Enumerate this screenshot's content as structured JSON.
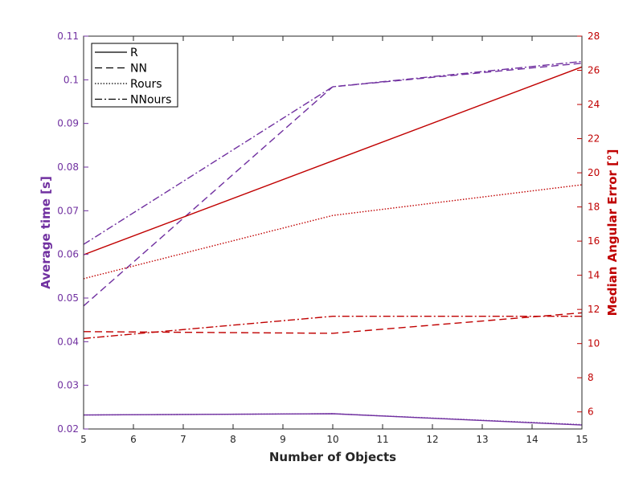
{
  "colors": {
    "left": "#7030A0",
    "right": "#C00000",
    "axis": "#262626"
  },
  "chart_data": {
    "type": "line",
    "x": [
      5,
      10,
      15
    ],
    "xlabel": "Number of Objects",
    "ylabel_left": "Average time [s]",
    "ylabel_right": "Median Angular Error [°]",
    "xlim": [
      5,
      15
    ],
    "ylim_left": [
      0.02,
      0.11
    ],
    "ylim_right": [
      5,
      28
    ],
    "xticks": [
      5,
      6,
      7,
      8,
      9,
      10,
      11,
      12,
      13,
      14,
      15
    ],
    "yticks_left": [
      0.02,
      0.03,
      0.04,
      0.05,
      0.06,
      0.07,
      0.08,
      0.09,
      0.1,
      0.11
    ],
    "yticks_left_labels": [
      "0.02",
      "0.03",
      "0.04",
      "0.05",
      "0.06",
      "0.07",
      "0.08",
      "0.09",
      "0.1",
      "0.11"
    ],
    "yticks_right": [
      6,
      8,
      10,
      12,
      14,
      16,
      18,
      20,
      22,
      24,
      26,
      28
    ],
    "yticks_right_labels": [
      "6",
      "8",
      "10",
      "12",
      "14",
      "16",
      "18",
      "20",
      "22",
      "24",
      "26",
      "28"
    ],
    "grid": false,
    "legend_position": "top-left",
    "legend": [
      {
        "name": "R",
        "style": "solid"
      },
      {
        "name": "NN",
        "style": "dashed"
      },
      {
        "name": "Rours",
        "style": "dotted"
      },
      {
        "name": "NNours",
        "style": "dashdot"
      }
    ],
    "series_left": [
      {
        "name": "R",
        "style": "solid",
        "values": [
          0.0232,
          0.0235,
          0.0209
        ]
      },
      {
        "name": "NN",
        "style": "dashed",
        "values": [
          0.0482,
          0.0984,
          0.1038
        ]
      },
      {
        "name": "Rours",
        "style": "dotted",
        "values": [
          0.0232,
          0.0235,
          0.021
        ]
      },
      {
        "name": "NNours",
        "style": "dashdot",
        "values": [
          0.0623,
          0.0984,
          0.1042
        ]
      }
    ],
    "series_right": [
      {
        "name": "R",
        "style": "solid",
        "values": [
          15.2,
          20.7,
          26.2
        ]
      },
      {
        "name": "NN",
        "style": "dashed",
        "values": [
          10.7,
          10.6,
          11.8
        ]
      },
      {
        "name": "Rours",
        "style": "dotted",
        "values": [
          13.8,
          17.5,
          19.3
        ]
      },
      {
        "name": "NNours",
        "style": "dashdot",
        "values": [
          10.3,
          11.6,
          11.6
        ]
      }
    ]
  }
}
